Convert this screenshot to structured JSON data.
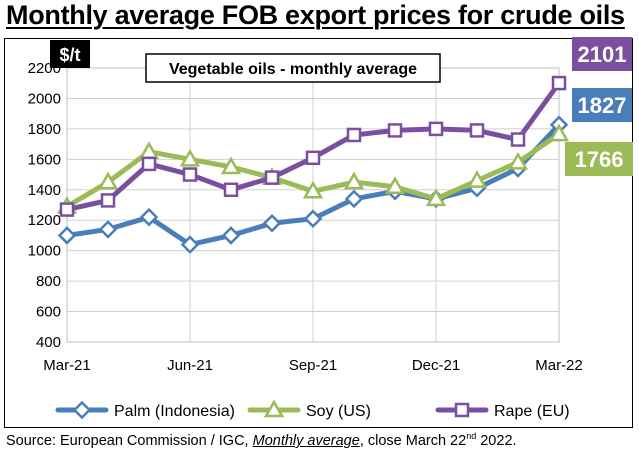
{
  "title": "Monthly average FOB export prices for crude oils",
  "source": {
    "prefix": "Source: European Commission / IGC, ",
    "italic": "Monthly average",
    "mid": ", close March 22",
    "sup": "nd",
    "suffix": " 2022."
  },
  "chart_data": {
    "type": "line",
    "title": "Vegetable oils - monthly average",
    "unit_label": "$/t",
    "xlabel": "",
    "ylabel": "$/t",
    "ylim": [
      400,
      2200
    ],
    "yticks": [
      400,
      600,
      800,
      1000,
      1200,
      1400,
      1600,
      1800,
      2000,
      2200
    ],
    "x_tick_labels": [
      "Mar-21",
      "Jun-21",
      "Sep-21",
      "Dec-21",
      "Mar-22"
    ],
    "x_tick_indices": [
      0,
      3,
      6,
      9,
      12
    ],
    "grid": true,
    "legend_position": "bottom",
    "series": [
      {
        "name": "Palm (Indonesia)",
        "color": "#4a7ebb",
        "marker": "diamond",
        "values": [
          1100,
          1140,
          1220,
          1040,
          1100,
          1180,
          1210,
          1340,
          1390,
          1340,
          1410,
          1540,
          1827
        ],
        "end_label": "1827"
      },
      {
        "name": "Soy (US)",
        "color": "#9bbb59",
        "marker": "triangle",
        "values": [
          1290,
          1450,
          1650,
          1600,
          1550,
          1480,
          1390,
          1450,
          1420,
          1340,
          1460,
          1580,
          1766
        ],
        "end_label": "1766"
      },
      {
        "name": "Rape (EU)",
        "color": "#7b4fa0",
        "marker": "square",
        "values": [
          1270,
          1330,
          1570,
          1500,
          1400,
          1480,
          1610,
          1760,
          1790,
          1800,
          1790,
          1730,
          2101
        ],
        "end_label": "2101"
      }
    ]
  }
}
